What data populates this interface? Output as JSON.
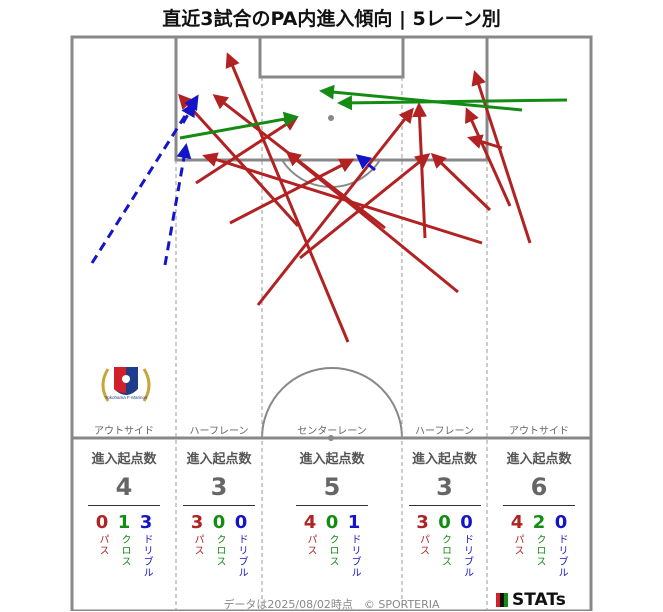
{
  "title": "直近3試合のPA内進入傾向 | 5レーン別",
  "lanes": [
    {
      "label": "アウトサイド",
      "stat_head": "進入起点数",
      "total": "4",
      "pass": "0",
      "cross": "1",
      "dribble": "3"
    },
    {
      "label": "ハーフレーン",
      "stat_head": "進入起点数",
      "total": "3",
      "pass": "3",
      "cross": "0",
      "dribble": "0"
    },
    {
      "label": "センターレーン",
      "stat_head": "進入起点数",
      "total": "5",
      "pass": "4",
      "cross": "0",
      "dribble": "1"
    },
    {
      "label": "ハーフレーン",
      "stat_head": "進入起点数",
      "total": "3",
      "pass": "3",
      "cross": "0",
      "dribble": "0"
    },
    {
      "label": "アウトサイド",
      "stat_head": "進入起点数",
      "total": "6",
      "pass": "4",
      "cross": "2",
      "dribble": "0"
    }
  ],
  "legend_labels": {
    "pass": "パス",
    "cross": "クロス",
    "dribble": "ドリブル"
  },
  "crest_text": "Yokohama F·Marinos",
  "footer": "データは2025/08/02時点　© SPORTERIA",
  "brand": "STATs",
  "colors": {
    "pass": "#b22222",
    "cross": "#148c14",
    "dribble": "#1414c8",
    "pitch_line": "#888888"
  }
}
